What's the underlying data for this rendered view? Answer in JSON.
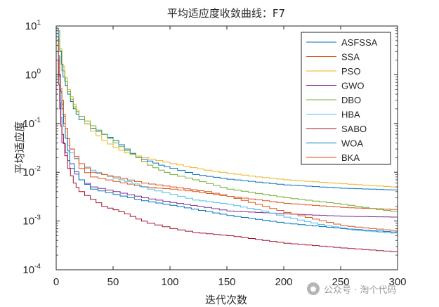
{
  "chart_data": {
    "type": "line",
    "title": "平均适应度收敛曲线：F7",
    "xlabel": "迭代次数",
    "ylabel": "平均适应度",
    "x_scale": "linear",
    "y_scale": "log",
    "xlim": [
      0,
      300
    ],
    "ylim": [
      0.0001,
      10
    ],
    "x_ticks": [
      "0",
      "50",
      "100",
      "150",
      "200",
      "250",
      "300"
    ],
    "y_ticks": [
      {
        "base": "10",
        "exp": "-4"
      },
      {
        "base": "10",
        "exp": "-3"
      },
      {
        "base": "10",
        "exp": "-2"
      },
      {
        "base": "10",
        "exp": "-1"
      },
      {
        "base": "10",
        "exp": "0"
      },
      {
        "base": "10",
        "exp": "1"
      }
    ],
    "grid": false,
    "legend_position": "top-right",
    "series": [
      {
        "name": "ASFSSA",
        "color": "#0072BD",
        "points": [
          [
            1,
            9
          ],
          [
            3,
            3
          ],
          [
            6,
            0.9
          ],
          [
            10,
            0.4
          ],
          [
            15,
            0.2
          ],
          [
            20,
            0.12
          ],
          [
            30,
            0.08
          ],
          [
            40,
            0.06
          ],
          [
            50,
            0.045
          ],
          [
            60,
            0.03
          ],
          [
            70,
            0.02
          ],
          [
            80,
            0.017
          ],
          [
            90,
            0.014
          ],
          [
            100,
            0.012
          ],
          [
            120,
            0.009
          ],
          [
            150,
            0.0072
          ],
          [
            200,
            0.0055
          ],
          [
            250,
            0.0047
          ],
          [
            300,
            0.0043
          ]
        ]
      },
      {
        "name": "SSA",
        "color": "#D95319",
        "points": [
          [
            1,
            5
          ],
          [
            3,
            0.8
          ],
          [
            5,
            0.25
          ],
          [
            8,
            0.08
          ],
          [
            12,
            0.03
          ],
          [
            20,
            0.012
          ],
          [
            30,
            0.008
          ],
          [
            50,
            0.0065
          ],
          [
            75,
            0.005
          ],
          [
            100,
            0.0045
          ],
          [
            120,
            0.004
          ],
          [
            150,
            0.0032
          ],
          [
            200,
            0.0023
          ],
          [
            250,
            0.0019
          ],
          [
            300,
            0.0017
          ]
        ]
      },
      {
        "name": "PSO",
        "color": "#EDB120",
        "points": [
          [
            1,
            8
          ],
          [
            5,
            1.5
          ],
          [
            10,
            0.5
          ],
          [
            15,
            0.25
          ],
          [
            20,
            0.14
          ],
          [
            30,
            0.07
          ],
          [
            40,
            0.045
          ],
          [
            50,
            0.032
          ],
          [
            60,
            0.025
          ],
          [
            75,
            0.02
          ],
          [
            100,
            0.015
          ],
          [
            130,
            0.011
          ],
          [
            150,
            0.0095
          ],
          [
            175,
            0.008
          ],
          [
            200,
            0.007
          ],
          [
            250,
            0.0058
          ],
          [
            300,
            0.0049
          ]
        ]
      },
      {
        "name": "GWO",
        "color": "#7E2F8E",
        "points": [
          [
            1,
            3
          ],
          [
            3,
            0.3
          ],
          [
            5,
            0.06
          ],
          [
            8,
            0.025
          ],
          [
            12,
            0.012
          ],
          [
            20,
            0.007
          ],
          [
            30,
            0.005
          ],
          [
            50,
            0.004
          ],
          [
            75,
            0.003
          ],
          [
            100,
            0.0024
          ],
          [
            130,
            0.0019
          ],
          [
            150,
            0.0016
          ],
          [
            200,
            0.0014
          ],
          [
            250,
            0.00125
          ],
          [
            300,
            0.0012
          ]
        ]
      },
      {
        "name": "DBO",
        "color": "#77AC30",
        "points": [
          [
            1,
            8
          ],
          [
            5,
            1.2
          ],
          [
            10,
            0.45
          ],
          [
            15,
            0.22
          ],
          [
            20,
            0.14
          ],
          [
            30,
            0.09
          ],
          [
            40,
            0.06
          ],
          [
            50,
            0.04
          ],
          [
            60,
            0.028
          ],
          [
            70,
            0.02
          ],
          [
            80,
            0.014
          ],
          [
            90,
            0.011
          ],
          [
            100,
            0.009
          ],
          [
            120,
            0.007
          ],
          [
            150,
            0.0045
          ],
          [
            200,
            0.003
          ],
          [
            250,
            0.0022
          ],
          [
            300,
            0.0015
          ]
        ]
      },
      {
        "name": "HBA",
        "color": "#4DBEEE",
        "points": [
          [
            1,
            4
          ],
          [
            3,
            0.5
          ],
          [
            5,
            0.15
          ],
          [
            8,
            0.05
          ],
          [
            12,
            0.025
          ],
          [
            20,
            0.015
          ],
          [
            30,
            0.011
          ],
          [
            40,
            0.009
          ],
          [
            50,
            0.0075
          ],
          [
            60,
            0.0065
          ],
          [
            80,
            0.0045
          ],
          [
            100,
            0.0035
          ],
          [
            120,
            0.0027
          ],
          [
            150,
            0.0022
          ],
          [
            180,
            0.0016
          ],
          [
            200,
            0.0012
          ],
          [
            230,
            0.00085
          ],
          [
            260,
            0.00065
          ],
          [
            300,
            0.00055
          ]
        ]
      },
      {
        "name": "SABO",
        "color": "#A2142F",
        "points": [
          [
            1,
            2
          ],
          [
            3,
            0.2
          ],
          [
            5,
            0.04
          ],
          [
            10,
            0.012
          ],
          [
            15,
            0.006
          ],
          [
            20,
            0.004
          ],
          [
            30,
            0.0028
          ],
          [
            40,
            0.002
          ],
          [
            50,
            0.0017
          ],
          [
            60,
            0.0014
          ],
          [
            70,
            0.0011
          ],
          [
            80,
            0.0009
          ],
          [
            100,
            0.0007
          ],
          [
            120,
            0.00058
          ],
          [
            150,
            0.0005
          ],
          [
            200,
            0.00035
          ],
          [
            250,
            0.00028
          ],
          [
            300,
            0.00023
          ]
        ]
      },
      {
        "name": "WOA",
        "color": "#0072BD",
        "points": [
          [
            1,
            6
          ],
          [
            3,
            1
          ],
          [
            5,
            0.2
          ],
          [
            8,
            0.05
          ],
          [
            12,
            0.015
          ],
          [
            20,
            0.007
          ],
          [
            30,
            0.0045
          ],
          [
            50,
            0.0035
          ],
          [
            75,
            0.0026
          ],
          [
            100,
            0.0021
          ],
          [
            150,
            0.0013
          ],
          [
            200,
            0.0009
          ],
          [
            250,
            0.0007
          ],
          [
            300,
            0.00058
          ]
        ]
      },
      {
        "name": "BKA",
        "color": "#D95319",
        "points": [
          [
            1,
            5
          ],
          [
            3,
            0.9
          ],
          [
            5,
            0.3
          ],
          [
            8,
            0.08
          ],
          [
            12,
            0.03
          ],
          [
            20,
            0.015
          ],
          [
            30,
            0.01
          ],
          [
            40,
            0.009
          ],
          [
            50,
            0.008
          ],
          [
            75,
            0.006
          ],
          [
            100,
            0.005
          ],
          [
            130,
            0.004
          ],
          [
            150,
            0.0032
          ],
          [
            200,
            0.0015
          ],
          [
            250,
            0.0008
          ],
          [
            300,
            0.00062
          ]
        ]
      }
    ]
  },
  "watermark": {
    "icon": "wechat-icon",
    "text": "公众号 · 淘个代码"
  }
}
